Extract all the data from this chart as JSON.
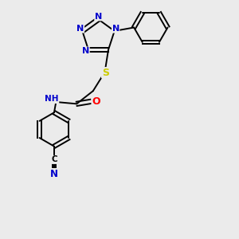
{
  "background_color": "#ebebeb",
  "atom_colors": {
    "C": "#000000",
    "N": "#0000cc",
    "O": "#ff0000",
    "S": "#cccc00",
    "H": "#5f9ea0"
  },
  "bond_color": "#000000",
  "figsize": [
    3.0,
    3.0
  ],
  "dpi": 100
}
